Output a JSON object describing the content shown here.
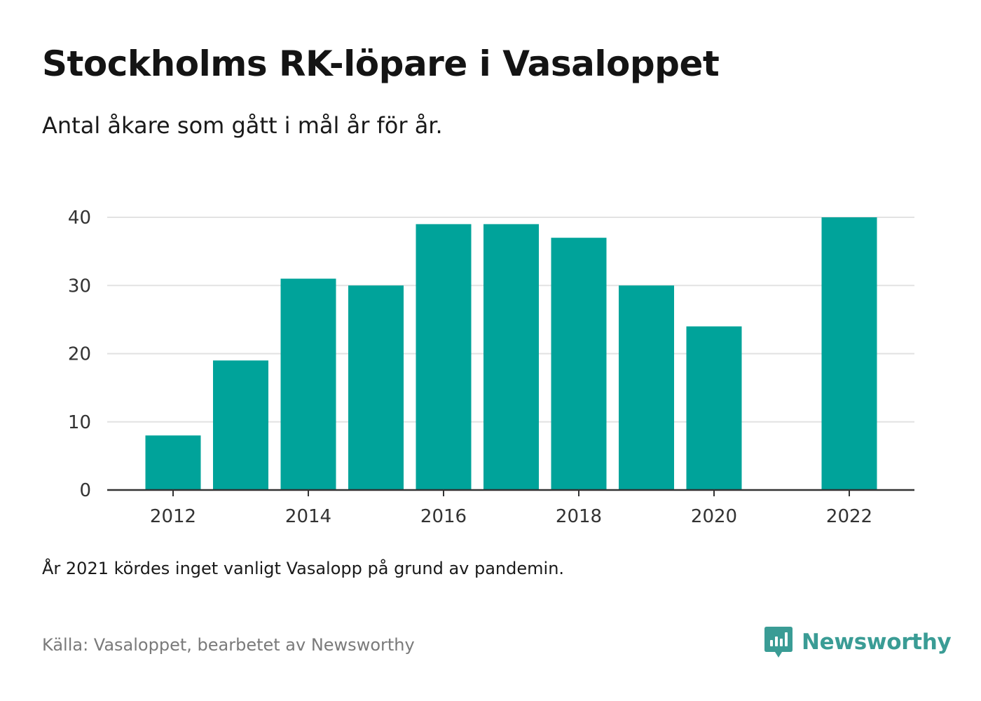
{
  "header": {
    "title": "Stockholms RK-löpare i Vasaloppet",
    "subtitle": "Antal åkare som gått i mål år för år."
  },
  "chart_data": {
    "type": "bar",
    "x": [
      2012,
      2013,
      2014,
      2015,
      2016,
      2017,
      2018,
      2019,
      2020,
      2021,
      2022
    ],
    "values": [
      8,
      19,
      31,
      30,
      39,
      39,
      37,
      30,
      24,
      null,
      40
    ],
    "xticks": [
      "2012",
      "2014",
      "2016",
      "2018",
      "2020",
      "2022"
    ],
    "yticks": [
      "0",
      "10",
      "20",
      "30",
      "40"
    ],
    "ylim": [
      0,
      40
    ],
    "grid": "horizontal",
    "bar_color": "#00a39a",
    "grid_color": "#e2e2e2",
    "axis_color": "#333333"
  },
  "footer": {
    "note": "År 2021 kördes inget vanligt Vasalopp på grund av pandemin.",
    "source": "Källa: Vasaloppet, bearbetet av Newsworthy",
    "brand": "Newsworthy",
    "brand_color": "#3a9c95",
    "brand_icon": "newsworthy-logo-icon"
  }
}
